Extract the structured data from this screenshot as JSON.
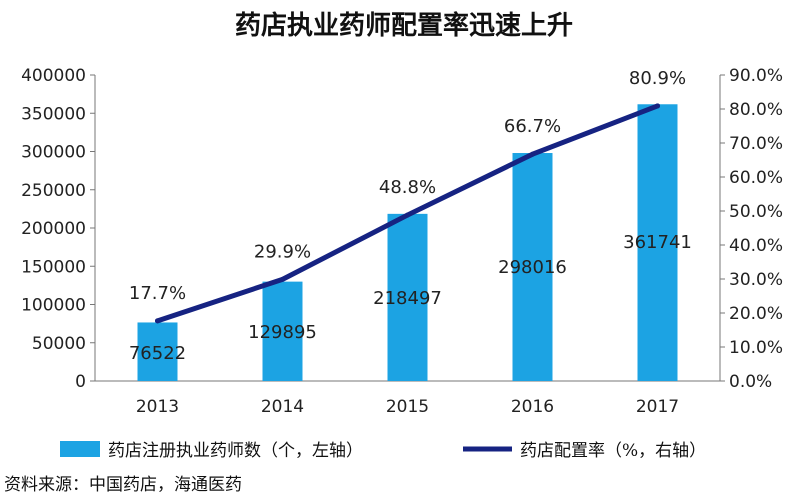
{
  "chart_data": {
    "type": "bar",
    "title": "药店执业药师配置率迅速上升",
    "categories": [
      "2013",
      "2014",
      "2015",
      "2016",
      "2017"
    ],
    "series": [
      {
        "name": "药店注册执业药师数（个，左轴）",
        "kind": "bar",
        "axis": "left",
        "values": [
          76522,
          129895,
          218497,
          298016,
          361741
        ],
        "labels": [
          "76522",
          "129895",
          "218497",
          "298016",
          "361741"
        ]
      },
      {
        "name": "药店配置率（%，右轴）",
        "kind": "line",
        "axis": "right",
        "values": [
          17.7,
          29.9,
          48.8,
          66.7,
          80.9
        ],
        "labels": [
          "17.7%",
          "29.9%",
          "48.8%",
          "66.7%",
          "80.9%"
        ]
      }
    ],
    "y_left": {
      "range": [
        0,
        400000
      ],
      "ticks": [
        "0",
        "50000",
        "100000",
        "150000",
        "200000",
        "250000",
        "300000",
        "350000",
        "400000"
      ]
    },
    "y_right": {
      "range": [
        0,
        90
      ],
      "ticks": [
        "0.0%",
        "10.0%",
        "20.0%",
        "30.0%",
        "40.0%",
        "50.0%",
        "60.0%",
        "70.0%",
        "80.0%",
        "90.0%"
      ]
    },
    "grid": false,
    "legend_position": "bottom",
    "source": "资料来源：中国药店，海通医药",
    "colors": {
      "bar": "#1CA3E3",
      "line": "#162382",
      "axis": "#777777"
    }
  }
}
